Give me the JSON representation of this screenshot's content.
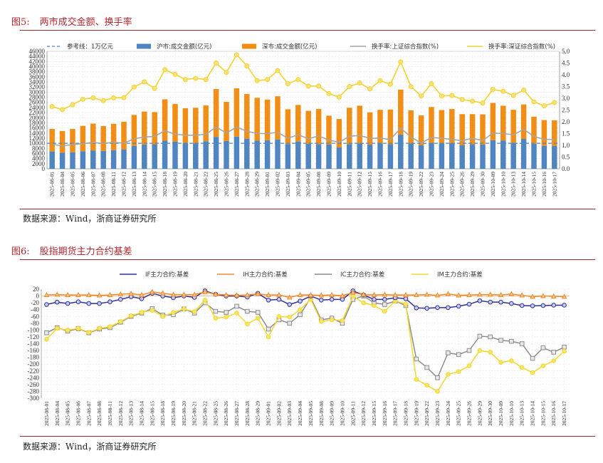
{
  "figure5": {
    "number": "图5:",
    "title": "两市成交金额、换手率",
    "source": "数据来源：Wind，浙商证券研究所"
  },
  "figure6": {
    "number": "图6:",
    "title": "股指期货主力合约基差",
    "source": "数据来源：Wind，浙商证券研究所"
  },
  "chart_data": [
    {
      "type": "bar",
      "stacked": true,
      "title": "两市成交金额、换手率",
      "legend_position": "top",
      "categories": [
        "2025-08-01",
        "2025-08-04",
        "2025-08-05",
        "2025-08-06",
        "2025-08-07",
        "2025-08-08",
        "2025-08-11",
        "2025-08-12",
        "2025-08-13",
        "2025-08-14",
        "2025-08-15",
        "2025-08-18",
        "2025-08-19",
        "2025-08-20",
        "2025-08-21",
        "2025-08-22",
        "2025-08-25",
        "2025-08-26",
        "2025-08-27",
        "2025-08-28",
        "2025-08-29",
        "2025-09-01",
        "2025-09-02",
        "2025-09-03",
        "2025-09-04",
        "2025-09-05",
        "2025-09-08",
        "2025-09-09",
        "2025-09-10",
        "2025-09-11",
        "2025-09-12",
        "2025-09-15",
        "2025-09-16",
        "2025-09-17",
        "2025-09-18",
        "2025-09-19",
        "2025-09-22",
        "2025-09-23",
        "2025-09-24",
        "2025-09-25",
        "2025-09-26",
        "2025-09-29",
        "2025-09-30",
        "2025-10-09",
        "2025-10-10",
        "2025-10-13",
        "2025-10-14",
        "2025-10-15",
        "2025-10-16",
        "2025-10-17"
      ],
      "series": [
        {
          "name": "沪市:成交金额(亿元)",
          "kind": "bar",
          "axis": "left",
          "color": "#4f86c1",
          "values": [
            6800,
            6300,
            6500,
            6900,
            7200,
            7000,
            7300,
            7600,
            9000,
            9500,
            9600,
            11000,
            10600,
            10100,
            10000,
            10800,
            12500,
            10900,
            12600,
            11800,
            11000,
            11200,
            11500,
            9700,
            10700,
            9800,
            9600,
            9500,
            8400,
            9700,
            9900,
            9500,
            9900,
            9600,
            13400,
            9900,
            9200,
            10200,
            9900,
            10100,
            9300,
            9600,
            9500,
            11200,
            11100,
            10200,
            11700,
            9800,
            9000,
            9000
          ]
        },
        {
          "name": "深市:成交金额(亿元)",
          "kind": "bar",
          "axis": "left",
          "color": "#f28e16",
          "values": [
            8800,
            8500,
            9100,
            9900,
            10500,
            9700,
            10300,
            10800,
            12100,
            12900,
            12600,
            16200,
            14800,
            13600,
            13900,
            14000,
            18700,
            15300,
            18900,
            17500,
            16800,
            15900,
            16900,
            13600,
            14300,
            12900,
            13800,
            11300,
            11100,
            14200,
            14800,
            12600,
            13200,
            13600,
            17600,
            13000,
            11700,
            14000,
            13100,
            13300,
            12100,
            11800,
            11800,
            14600,
            13600,
            12900,
            13500,
            10600,
            10100,
            10000
          ]
        },
        {
          "name": "换手率:上证综合指数(%)",
          "kind": "line",
          "axis": "right",
          "color": "#a6a6a6",
          "values": [
            1.05,
            0.97,
            1.03,
            1.07,
            1.12,
            1.08,
            1.13,
            1.09,
            1.28,
            1.35,
            1.38,
            1.62,
            1.47,
            1.43,
            1.43,
            1.47,
            1.78,
            1.52,
            1.78,
            1.6,
            1.5,
            1.5,
            1.55,
            1.3,
            1.45,
            1.28,
            1.4,
            1.22,
            1.13,
            1.38,
            1.42,
            1.3,
            1.3,
            1.25,
            1.73,
            1.35,
            1.1,
            1.33,
            1.3,
            1.25,
            1.2,
            1.3,
            1.2,
            1.52,
            1.5,
            1.45,
            1.68,
            1.38,
            1.25,
            1.25
          ]
        },
        {
          "name": "换手率:深证综合指数(%)",
          "kind": "line",
          "axis": "right",
          "color": "#f2d22e",
          "values": [
            2.65,
            2.52,
            2.73,
            2.96,
            3.02,
            2.9,
            3.02,
            3.03,
            3.48,
            3.7,
            3.42,
            4.22,
            4.02,
            3.8,
            3.85,
            3.8,
            4.5,
            4.1,
            4.85,
            4.38,
            3.75,
            3.8,
            4.18,
            3.62,
            3.8,
            3.52,
            3.52,
            3.2,
            3.05,
            3.5,
            3.65,
            3.4,
            3.75,
            3.6,
            4.55,
            3.5,
            3.1,
            3.62,
            3.1,
            3.12,
            2.95,
            2.88,
            2.8,
            3.38,
            3.3,
            3.12,
            3.35,
            2.85,
            2.68,
            2.82
          ]
        },
        {
          "name": "参考线:1万亿元",
          "kind": "reference",
          "axis": "left",
          "color": "#4f86c1",
          "values": [
            10000
          ]
        }
      ],
      "left_axis": {
        "ylim": [
          0,
          46000
        ],
        "tick_step": 2000
      },
      "right_axis": {
        "ylim": [
          0,
          5.0
        ],
        "tick_step": 0.5
      },
      "grid": true
    },
    {
      "type": "line",
      "title": "股指期货主力合约基差",
      "legend_position": "top",
      "categories": [
        "2025-08-01",
        "2025-08-04",
        "2025-08-05",
        "2025-08-06",
        "2025-08-07",
        "2025-08-08",
        "2025-08-11",
        "2025-08-12",
        "2025-08-13",
        "2025-08-14",
        "2025-08-15",
        "2025-08-18",
        "2025-08-19",
        "2025-08-20",
        "2025-08-21",
        "2025-08-22",
        "2025-08-25",
        "2025-08-26",
        "2025-08-27",
        "2025-08-28",
        "2025-08-29",
        "2025-09-01",
        "2025-09-02",
        "2025-09-03",
        "2025-09-04",
        "2025-09-05",
        "2025-09-08",
        "2025-09-09",
        "2025-09-10",
        "2025-09-11",
        "2025-09-12",
        "2025-09-15",
        "2025-09-16",
        "2025-09-17",
        "2025-09-18",
        "2025-09-19",
        "2025-09-22",
        "2025-09-23",
        "2025-09-24",
        "2025-09-25",
        "2025-09-26",
        "2025-09-29",
        "2025-09-30",
        "2025-10-09",
        "2025-10-10",
        "2025-10-13",
        "2025-10-14",
        "2025-10-15",
        "2025-10-16",
        "2025-10-17"
      ],
      "series": [
        {
          "name": "IF主力合约:基差",
          "color": "#2e3192",
          "marker": "circle",
          "values": [
            -25,
            -18,
            -22,
            -17,
            -22,
            -22,
            -17,
            -10,
            -2,
            -8,
            8,
            0,
            -5,
            0,
            -4,
            15,
            5,
            0,
            0,
            -3,
            8,
            -12,
            -10,
            -25,
            -15,
            0,
            -12,
            -10,
            -10,
            15,
            3,
            -10,
            -10,
            -5,
            -8,
            -35,
            -36,
            -34,
            -34,
            -30,
            -24,
            -14,
            -18,
            -18,
            -22,
            -28,
            -29,
            -28,
            -27,
            -27
          ]
        },
        {
          "name": "IH主力合约:基差",
          "color": "#f0882a",
          "marker": "triangle",
          "values": [
            3,
            4,
            3,
            3,
            3,
            2,
            3,
            5,
            7,
            3,
            12,
            8,
            4,
            4,
            4,
            12,
            5,
            3,
            2,
            3,
            6,
            3,
            3,
            -4,
            3,
            3,
            2,
            3,
            1,
            10,
            4,
            3,
            4,
            3,
            3,
            3,
            4,
            2,
            6,
            2,
            3,
            4,
            4,
            3,
            6,
            2,
            -2,
            0,
            -1,
            -2
          ]
        },
        {
          "name": "IC主力合约:基差",
          "color": "#8c8c8c",
          "marker": "square",
          "values": [
            -108,
            -93,
            -103,
            -96,
            -108,
            -97,
            -93,
            -77,
            -60,
            -50,
            -37,
            -56,
            -55,
            -38,
            -50,
            -20,
            -45,
            -48,
            -30,
            -45,
            -48,
            -97,
            -70,
            -80,
            -55,
            -5,
            -70,
            -65,
            -80,
            -10,
            0,
            -20,
            -25,
            -15,
            -28,
            -185,
            -210,
            -240,
            -167,
            -172,
            -160,
            -118,
            -120,
            -130,
            -133,
            -140,
            -183,
            -152,
            -165,
            -150
          ]
        },
        {
          "name": "IM主力合约:基差",
          "color": "#f2d82e",
          "marker": "circle",
          "values": [
            -127,
            -95,
            -100,
            -95,
            -107,
            -95,
            -90,
            -75,
            -58,
            -48,
            -42,
            -60,
            -48,
            -38,
            -46,
            -12,
            -65,
            -62,
            -50,
            -82,
            -65,
            -120,
            -60,
            -62,
            -40,
            -10,
            -75,
            -70,
            -72,
            0,
            -20,
            -28,
            -45,
            -15,
            -23,
            -245,
            -262,
            -280,
            -230,
            -222,
            -205,
            -160,
            -165,
            -195,
            -190,
            -210,
            -225,
            -205,
            -190,
            -162
          ]
        }
      ],
      "ylim": [
        -300,
        20
      ],
      "tick_step": 20,
      "grid": true
    }
  ]
}
